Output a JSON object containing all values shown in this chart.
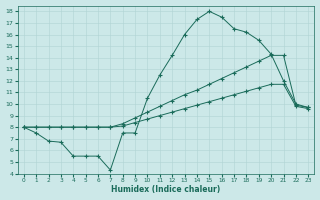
{
  "xlabel": "Humidex (Indice chaleur)",
  "bg_color": "#cce8e8",
  "line_color": "#1a6b5a",
  "xlim": [
    -0.5,
    23.5
  ],
  "ylim": [
    4,
    18.5
  ],
  "xticks": [
    0,
    1,
    2,
    3,
    4,
    5,
    6,
    7,
    8,
    9,
    10,
    11,
    12,
    13,
    14,
    15,
    16,
    17,
    18,
    19,
    20,
    21,
    22,
    23
  ],
  "yticks": [
    4,
    5,
    6,
    7,
    8,
    9,
    10,
    11,
    12,
    13,
    14,
    15,
    16,
    17,
    18
  ],
  "line1_x": [
    0,
    1,
    2,
    3,
    4,
    5,
    6,
    7,
    8,
    9,
    10,
    11,
    12,
    13,
    14,
    15,
    16,
    17,
    18,
    19,
    20,
    21,
    22,
    23
  ],
  "line1_y": [
    8.0,
    7.5,
    6.8,
    6.7,
    5.5,
    5.5,
    5.5,
    4.3,
    7.5,
    7.5,
    10.5,
    12.5,
    14.2,
    16.0,
    17.3,
    18.0,
    17.5,
    16.5,
    16.2,
    15.5,
    14.3,
    12.0,
    10.0,
    9.7
  ],
  "line2_x": [
    0,
    1,
    2,
    3,
    4,
    5,
    6,
    7,
    8,
    9,
    10,
    11,
    12,
    13,
    14,
    15,
    16,
    17,
    18,
    19,
    20,
    21,
    22,
    23
  ],
  "line2_y": [
    8.0,
    8.0,
    8.0,
    8.0,
    8.0,
    8.0,
    8.0,
    8.0,
    8.3,
    8.8,
    9.3,
    9.8,
    10.3,
    10.8,
    11.2,
    11.7,
    12.2,
    12.7,
    13.2,
    13.7,
    14.2,
    14.2,
    9.9,
    9.7
  ],
  "line3_x": [
    0,
    1,
    2,
    3,
    4,
    5,
    6,
    7,
    8,
    9,
    10,
    11,
    12,
    13,
    14,
    15,
    16,
    17,
    18,
    19,
    20,
    21,
    22,
    23
  ],
  "line3_y": [
    8.0,
    8.0,
    8.0,
    8.0,
    8.0,
    8.0,
    8.0,
    8.0,
    8.1,
    8.4,
    8.7,
    9.0,
    9.3,
    9.6,
    9.9,
    10.2,
    10.5,
    10.8,
    11.1,
    11.4,
    11.7,
    11.7,
    9.8,
    9.6
  ]
}
